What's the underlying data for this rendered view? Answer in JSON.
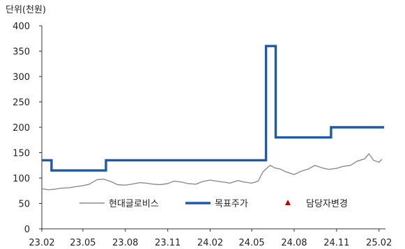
{
  "chart_data": {
    "type": "line",
    "unit_label": "단위(천원)",
    "title": "",
    "xlabel": "",
    "ylabel": "",
    "ylim": [
      0,
      400
    ],
    "yticks": [
      0,
      50,
      100,
      150,
      200,
      250,
      300,
      350,
      400
    ],
    "xlim": [
      "2023-02-01",
      "2025-02-15"
    ],
    "xticks": [
      "23.02",
      "23.05",
      "23.08",
      "23.11",
      "24.02",
      "24.05",
      "24.08",
      "24.11",
      "25.02"
    ],
    "grid": false,
    "legend_position": "lower-center",
    "series": [
      {
        "name": "현대글로비스",
        "style": "line",
        "color": "#8c8c8c",
        "points": [
          [
            "2023-02-01",
            79
          ],
          [
            "2023-02-15",
            77
          ],
          [
            "2023-03-01",
            78
          ],
          [
            "2023-03-15",
            80
          ],
          [
            "2023-04-01",
            81
          ],
          [
            "2023-04-15",
            83
          ],
          [
            "2023-05-01",
            85
          ],
          [
            "2023-05-15",
            88
          ],
          [
            "2023-06-01",
            97
          ],
          [
            "2023-06-15",
            98
          ],
          [
            "2023-07-01",
            93
          ],
          [
            "2023-07-15",
            87
          ],
          [
            "2023-08-01",
            86
          ],
          [
            "2023-08-15",
            88
          ],
          [
            "2023-09-01",
            91
          ],
          [
            "2023-09-15",
            90
          ],
          [
            "2023-10-01",
            88
          ],
          [
            "2023-10-15",
            87
          ],
          [
            "2023-11-01",
            89
          ],
          [
            "2023-11-15",
            94
          ],
          [
            "2023-12-01",
            92
          ],
          [
            "2023-12-15",
            89
          ],
          [
            "2024-01-01",
            88
          ],
          [
            "2024-01-15",
            93
          ],
          [
            "2024-02-01",
            96
          ],
          [
            "2024-02-15",
            94
          ],
          [
            "2024-03-01",
            92
          ],
          [
            "2024-03-15",
            90
          ],
          [
            "2024-04-01",
            95
          ],
          [
            "2024-04-15",
            92
          ],
          [
            "2024-05-01",
            90
          ],
          [
            "2024-05-15",
            94
          ],
          [
            "2024-05-25",
            112
          ],
          [
            "2024-06-01",
            118
          ],
          [
            "2024-06-10",
            125
          ],
          [
            "2024-06-20",
            120
          ],
          [
            "2024-07-01",
            118
          ],
          [
            "2024-07-15",
            112
          ],
          [
            "2024-08-01",
            107
          ],
          [
            "2024-08-15",
            113
          ],
          [
            "2024-09-01",
            118
          ],
          [
            "2024-09-15",
            125
          ],
          [
            "2024-10-01",
            120
          ],
          [
            "2024-10-15",
            117
          ],
          [
            "2024-11-01",
            119
          ],
          [
            "2024-11-15",
            123
          ],
          [
            "2024-12-01",
            125
          ],
          [
            "2024-12-15",
            133
          ],
          [
            "2025-01-01",
            138
          ],
          [
            "2025-01-10",
            148
          ],
          [
            "2025-01-20",
            135
          ],
          [
            "2025-02-01",
            131
          ],
          [
            "2025-02-07",
            137
          ]
        ]
      },
      {
        "name": "목표주가",
        "style": "step",
        "color": "#1f5aa6",
        "points": [
          [
            "2023-02-01",
            135
          ],
          [
            "2023-02-22",
            115
          ],
          [
            "2023-06-20",
            135
          ],
          [
            "2024-06-01",
            360
          ],
          [
            "2024-06-22",
            180
          ],
          [
            "2024-10-20",
            200
          ],
          [
            "2025-02-12",
            200
          ]
        ]
      },
      {
        "name": "담당자변경",
        "style": "marker",
        "color": "#c00000",
        "points": []
      }
    ]
  }
}
